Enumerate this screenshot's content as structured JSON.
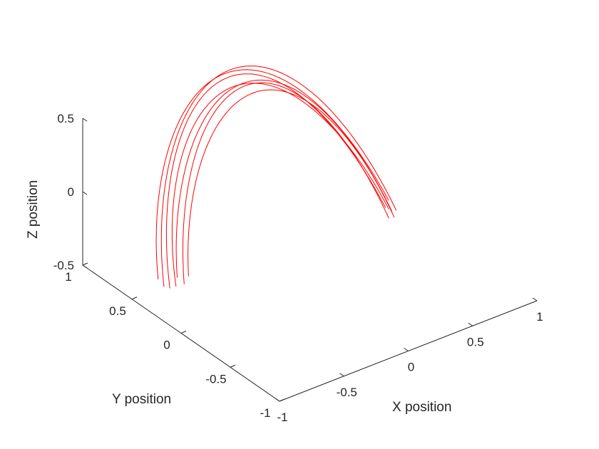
{
  "chart_data": {
    "type": "line3d",
    "title": "",
    "xlabel": "X position",
    "ylabel": "Y position",
    "zlabel": "Z position",
    "xlim": [
      -1,
      1
    ],
    "ylim": [
      -1,
      1
    ],
    "zlim": [
      -0.5,
      0.5
    ],
    "xticks": [
      "-1",
      "-0.5",
      "0",
      "0.5",
      "1"
    ],
    "yticks": [
      "-1",
      "-0.5",
      "0",
      "0.5",
      "1"
    ],
    "zticks": [
      "-0.5",
      "0",
      "0.5"
    ],
    "grid": false,
    "line_color": "#ff0000",
    "series": [
      {
        "theta_start": 3.55,
        "theta_end": 6.05,
        "radius": 0.9,
        "y_offset": 0.08,
        "z_amp": 0.95,
        "z_center": -0.43
      },
      {
        "theta_start": 3.5,
        "theta_end": 6.0,
        "radius": 0.85,
        "y_offset": 0.05,
        "z_amp": 0.85,
        "z_center": -0.4
      },
      {
        "theta_start": 3.6,
        "theta_end": 6.02,
        "radius": 0.8,
        "y_offset": 0.02,
        "z_amp": 0.9,
        "z_center": -0.42
      },
      {
        "theta_start": 3.58,
        "theta_end": 5.98,
        "radius": 0.92,
        "y_offset": 0.1,
        "z_amp": 0.88,
        "z_center": -0.4
      },
      {
        "theta_start": 3.65,
        "theta_end": 6.08,
        "radius": 0.78,
        "y_offset": 0.0,
        "z_amp": 0.82,
        "z_center": -0.38
      },
      {
        "theta_start": 3.52,
        "theta_end": 5.95,
        "radius": 0.88,
        "y_offset": 0.06,
        "z_amp": 0.92,
        "z_center": -0.42
      },
      {
        "theta_start": 3.62,
        "theta_end": 6.04,
        "radius": 0.83,
        "y_offset": 0.04,
        "z_amp": 0.86,
        "z_center": -0.39
      }
    ]
  }
}
